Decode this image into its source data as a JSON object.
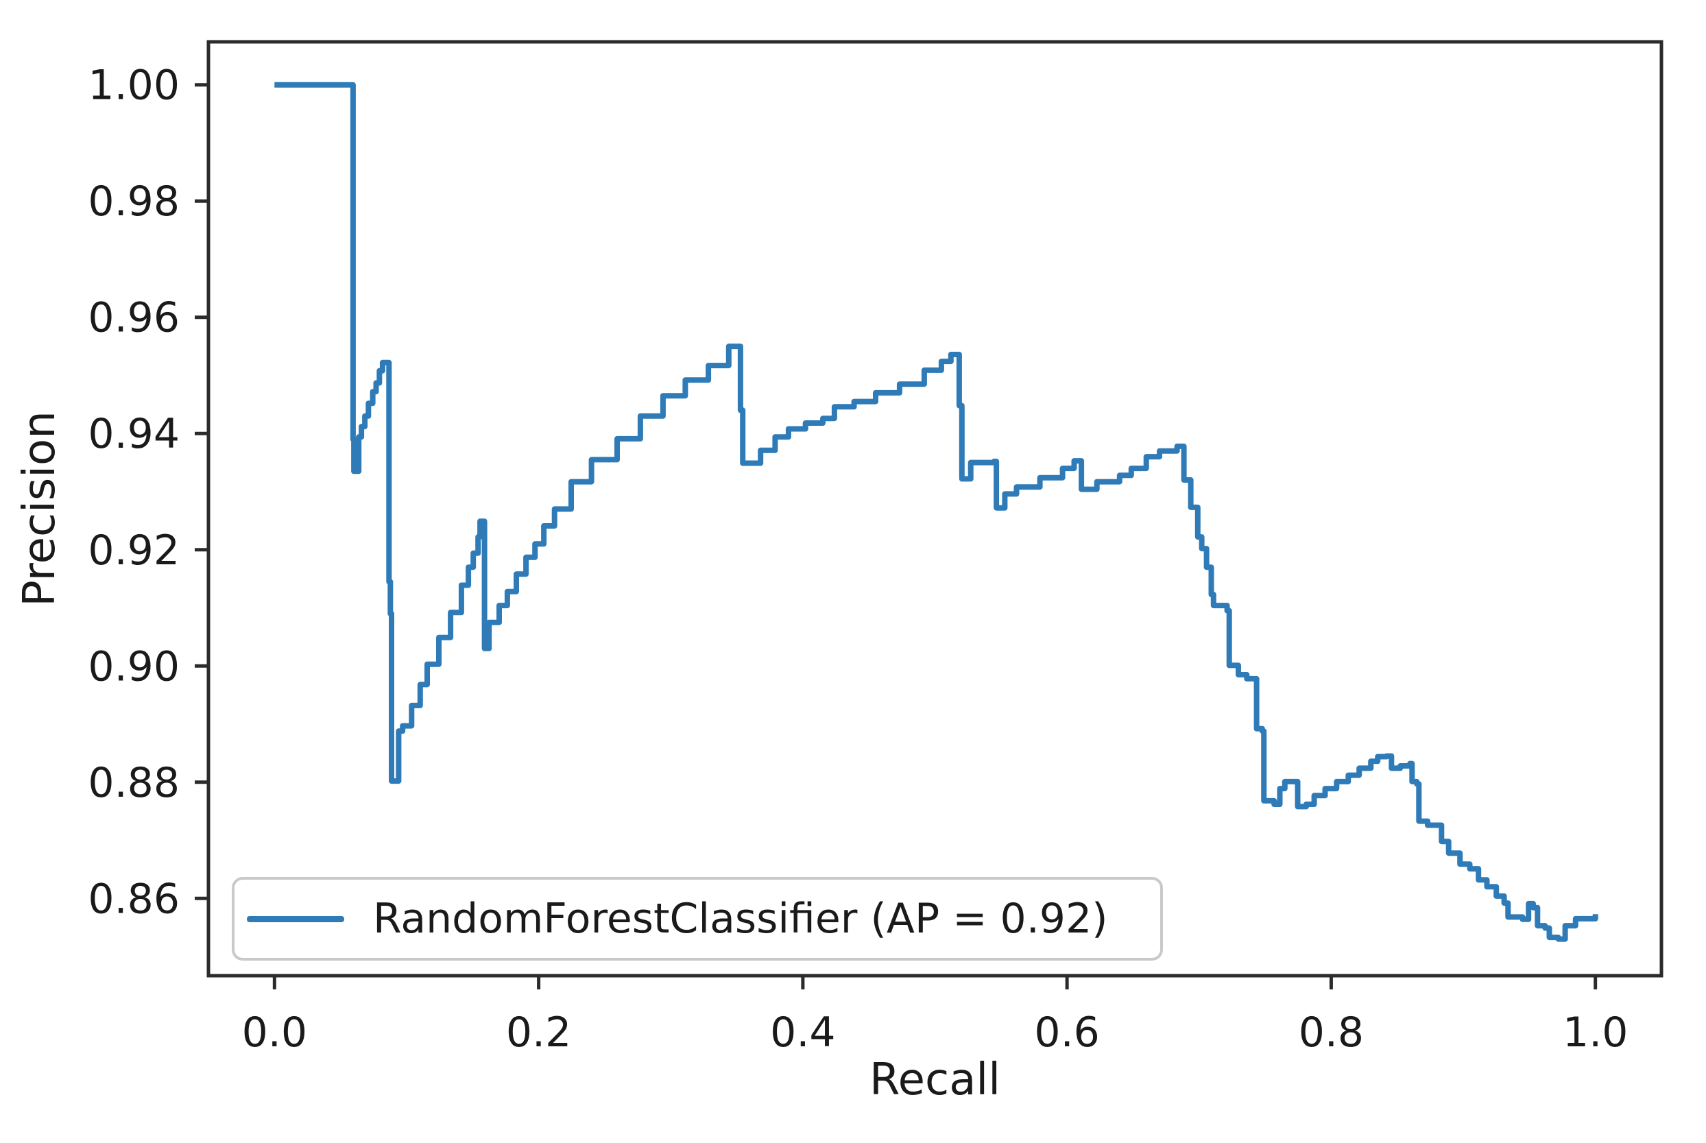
{
  "figure": {
    "background_color": "#ffffff",
    "spine_color": "#2b2b2b",
    "text_color": "#1a1a1a"
  },
  "axes": {
    "xlabel": "Recall",
    "ylabel": "Precision"
  },
  "legend": {
    "label": "RandomForestClassifier (AP = 0.92)",
    "swatch_color": "#2e7bb8",
    "border_color": "#c9c9c9",
    "position": "lower left"
  },
  "chart_data": {
    "type": "line",
    "title": "",
    "xlabel": "Recall",
    "ylabel": "Precision",
    "grid": false,
    "legend_position": "lower left",
    "line_color": "#2e7bb8",
    "average_precision": 0.92,
    "xlim": [
      -0.05,
      1.05
    ],
    "ylim": [
      0.8467,
      1.0074
    ],
    "xticks": [
      0.0,
      0.2,
      0.4,
      0.6,
      0.8,
      1.0
    ],
    "xtick_labels": [
      "0.0",
      "0.2",
      "0.4",
      "0.6",
      "0.8",
      "1.0"
    ],
    "yticks": [
      0.86,
      0.88,
      0.9,
      0.92,
      0.94,
      0.96,
      0.98,
      1.0
    ],
    "ytick_labels": [
      "0.86",
      "0.88",
      "0.90",
      "0.92",
      "0.94",
      "0.96",
      "0.98",
      "1.00"
    ],
    "series": [
      {
        "name": "RandomForestClassifier (AP = 0.92)",
        "drawstyle": "steps-post",
        "color": "#2e7bb8",
        "points": [
          [
            0.0,
            1.0
          ],
          [
            0.059,
            1.0
          ],
          [
            0.0595,
            0.939
          ],
          [
            0.0601,
            0.9335
          ],
          [
            0.0638,
            0.9394
          ],
          [
            0.0658,
            0.9412
          ],
          [
            0.0684,
            0.943
          ],
          [
            0.0711,
            0.9452
          ],
          [
            0.0744,
            0.9472
          ],
          [
            0.0769,
            0.9487
          ],
          [
            0.0794,
            0.9508
          ],
          [
            0.0818,
            0.9522
          ],
          [
            0.0867,
            0.9145
          ],
          [
            0.0877,
            0.909
          ],
          [
            0.0886,
            0.8802
          ],
          [
            0.094,
            0.8888
          ],
          [
            0.097,
            0.8897
          ],
          [
            0.1038,
            0.8932
          ],
          [
            0.1103,
            0.8968
          ],
          [
            0.1156,
            0.9003
          ],
          [
            0.1244,
            0.9049
          ],
          [
            0.1333,
            0.9092
          ],
          [
            0.1415,
            0.9139
          ],
          [
            0.1468,
            0.917
          ],
          [
            0.1505,
            0.9194
          ],
          [
            0.1541,
            0.9222
          ],
          [
            0.1556,
            0.9249
          ],
          [
            0.159,
            0.903
          ],
          [
            0.1624,
            0.9075
          ],
          [
            0.1701,
            0.9104
          ],
          [
            0.1763,
            0.9128
          ],
          [
            0.1831,
            0.9158
          ],
          [
            0.1904,
            0.9187
          ],
          [
            0.1972,
            0.921
          ],
          [
            0.2039,
            0.9241
          ],
          [
            0.212,
            0.927
          ],
          [
            0.2246,
            0.9317
          ],
          [
            0.24,
            0.9355
          ],
          [
            0.2594,
            0.9391
          ],
          [
            0.277,
            0.943
          ],
          [
            0.2941,
            0.9465
          ],
          [
            0.311,
            0.9492
          ],
          [
            0.3285,
            0.9517
          ],
          [
            0.3439,
            0.955
          ],
          [
            0.3528,
            0.944
          ],
          [
            0.3545,
            0.9349
          ],
          [
            0.368,
            0.9371
          ],
          [
            0.379,
            0.9394
          ],
          [
            0.3891,
            0.9408
          ],
          [
            0.402,
            0.9418
          ],
          [
            0.4151,
            0.9426
          ],
          [
            0.4239,
            0.9446
          ],
          [
            0.4388,
            0.9455
          ],
          [
            0.4551,
            0.947
          ],
          [
            0.4732,
            0.9485
          ],
          [
            0.4919,
            0.9509
          ],
          [
            0.5049,
            0.9524
          ],
          [
            0.5121,
            0.9536
          ],
          [
            0.5184,
            0.9448
          ],
          [
            0.5204,
            0.9322
          ],
          [
            0.5271,
            0.935
          ],
          [
            0.5447,
            0.9352
          ],
          [
            0.5465,
            0.9272
          ],
          [
            0.5529,
            0.9296
          ],
          [
            0.5618,
            0.9308
          ],
          [
            0.5795,
            0.9324
          ],
          [
            0.5966,
            0.934
          ],
          [
            0.6054,
            0.9353
          ],
          [
            0.6109,
            0.9304
          ],
          [
            0.6226,
            0.9317
          ],
          [
            0.6398,
            0.9328
          ],
          [
            0.6486,
            0.934
          ],
          [
            0.66,
            0.936
          ],
          [
            0.67,
            0.937
          ],
          [
            0.6833,
            0.9378
          ],
          [
            0.6885,
            0.932
          ],
          [
            0.6937,
            0.9273
          ],
          [
            0.699,
            0.9222
          ],
          [
            0.702,
            0.9202
          ],
          [
            0.7056,
            0.917
          ],
          [
            0.7092,
            0.9123
          ],
          [
            0.7109,
            0.9104
          ],
          [
            0.7212,
            0.9095
          ],
          [
            0.7228,
            0.9001
          ],
          [
            0.7297,
            0.8985
          ],
          [
            0.7361,
            0.8978
          ],
          [
            0.7435,
            0.8892
          ],
          [
            0.7478,
            0.8888
          ],
          [
            0.749,
            0.8768
          ],
          [
            0.7568,
            0.8762
          ],
          [
            0.7611,
            0.8789
          ],
          [
            0.7649,
            0.8801
          ],
          [
            0.7746,
            0.8758
          ],
          [
            0.7811,
            0.8762
          ],
          [
            0.7871,
            0.8777
          ],
          [
            0.7954,
            0.8789
          ],
          [
            0.8041,
            0.8801
          ],
          [
            0.8129,
            0.8812
          ],
          [
            0.8212,
            0.8824
          ],
          [
            0.83,
            0.8836
          ],
          [
            0.8352,
            0.8844
          ],
          [
            0.8419,
            0.8845
          ],
          [
            0.8456,
            0.8824
          ],
          [
            0.8523,
            0.8828
          ],
          [
            0.8596,
            0.8832
          ],
          [
            0.8612,
            0.8801
          ],
          [
            0.8648,
            0.8797
          ],
          [
            0.8664,
            0.8733
          ],
          [
            0.873,
            0.8726
          ],
          [
            0.8835,
            0.8698
          ],
          [
            0.8889,
            0.8678
          ],
          [
            0.8975,
            0.8659
          ],
          [
            0.9049,
            0.8651
          ],
          [
            0.9115,
            0.8632
          ],
          [
            0.9179,
            0.862
          ],
          [
            0.925,
            0.8604
          ],
          [
            0.9309,
            0.8592
          ],
          [
            0.9339,
            0.8568
          ],
          [
            0.9449,
            0.8564
          ],
          [
            0.9494,
            0.8591
          ],
          [
            0.9529,
            0.8584
          ],
          [
            0.9562,
            0.8553
          ],
          [
            0.9619,
            0.8549
          ],
          [
            0.9651,
            0.8533
          ],
          [
            0.9719,
            0.853
          ],
          [
            0.9771,
            0.8553
          ],
          [
            0.985,
            0.8565
          ],
          [
            1.0,
            0.8573
          ]
        ]
      }
    ]
  }
}
